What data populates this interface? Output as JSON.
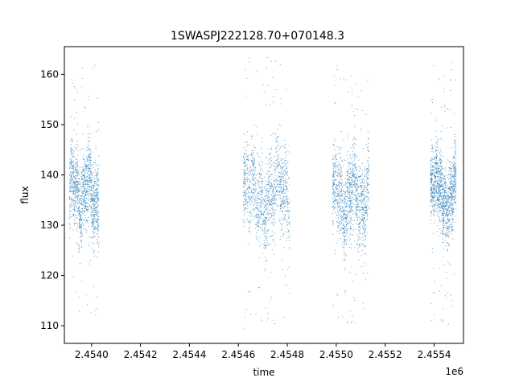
{
  "chart_data": {
    "type": "scatter",
    "title": "1SWASPJ222128.70+070148.3",
    "xlabel": "time",
    "ylabel": "flux",
    "x_offset_label": "1e6",
    "xlim": [
      2453889,
      2455520
    ],
    "ylim": [
      106.5,
      165.5
    ],
    "x_ticks": [
      2454000,
      2454200,
      2454400,
      2454600,
      2454800,
      2455000,
      2455200,
      2455400
    ],
    "x_tick_labels": [
      "2.4540",
      "2.4542",
      "2.4544",
      "2.4546",
      "2.4548",
      "2.4550",
      "2.4552",
      "2.4554"
    ],
    "y_ticks": [
      110,
      120,
      130,
      140,
      150,
      160
    ],
    "y_tick_labels": [
      "110",
      "120",
      "130",
      "140",
      "150",
      "160"
    ],
    "grid": false,
    "marker_color": "#1f77b4",
    "seasons": [
      {
        "x_start": 2453910,
        "x_end": 2454030,
        "median_y": 136.5,
        "core_spread": 5.5,
        "outlier_min": 112,
        "outlier_max": 162.5
      },
      {
        "x_start": 2454620,
        "x_end": 2454810,
        "median_y": 136.0,
        "core_spread": 6.0,
        "outlier_min": 109.5,
        "outlier_max": 164.0
      },
      {
        "x_start": 2454985,
        "x_end": 2455135,
        "median_y": 135.5,
        "core_spread": 6.0,
        "outlier_min": 109.0,
        "outlier_max": 162.5
      },
      {
        "x_start": 2455385,
        "x_end": 2455490,
        "median_y": 136.5,
        "core_spread": 5.0,
        "outlier_min": 109.5,
        "outlier_max": 162.5
      }
    ]
  }
}
